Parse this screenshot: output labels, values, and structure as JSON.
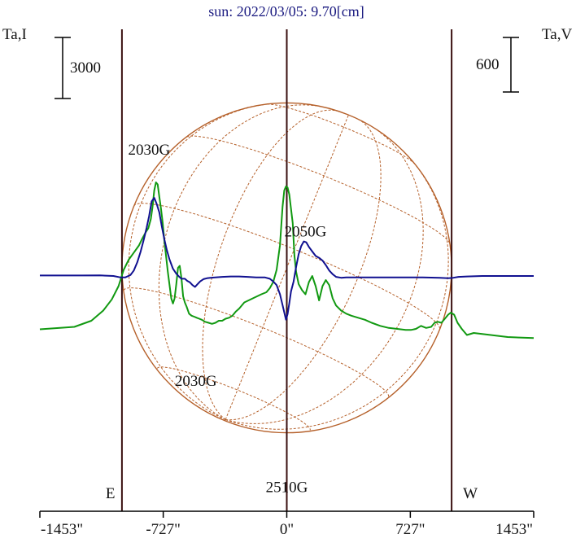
{
  "chart_data": {
    "type": "line",
    "title": "sun: 2022/03/05: 9.70[cm]",
    "ylabel_left": "Ta,I",
    "ylabel_right": "Ta,V",
    "scale_left_label": "3000",
    "scale_right_label": "600",
    "xlim": [
      -1453,
      1453
    ],
    "x_ticks": [
      {
        "value": -1453,
        "label": "-1453\""
      },
      {
        "value": -727,
        "label": "-727\""
      },
      {
        "value": 0,
        "label": "0\""
      },
      {
        "value": 727,
        "label": "727\""
      },
      {
        "value": 1453,
        "label": "1453\""
      }
    ],
    "vertical_markers": [
      {
        "x": -970,
        "label": "E"
      },
      {
        "x": 0,
        "label": ""
      },
      {
        "x": 970,
        "label": "W"
      }
    ],
    "annotations": [
      {
        "text": "2030G",
        "x": -810,
        "level": 0.74
      },
      {
        "text": "2050G",
        "x": 110,
        "level": 0.57
      },
      {
        "text": "2030G",
        "x": -535,
        "level": 0.26
      },
      {
        "text": "2510G",
        "x": 0,
        "level": 0.04
      }
    ],
    "disk": {
      "radius_arcsec": 970
    },
    "series": [
      {
        "name": "",
        "color": "#119911",
        "axis": "left",
        "x": [
          -1453,
          -1250,
          -1150,
          -1080,
          -1030,
          -990,
          -960,
          -930,
          -900,
          -870,
          -850,
          -830,
          -815,
          -800,
          -790,
          -780,
          -770,
          -760,
          -750,
          -740,
          -730,
          -720,
          -700,
          -680,
          -670,
          -660,
          -650,
          -640,
          -630,
          -620,
          -610,
          -600,
          -590,
          -575,
          -560,
          -545,
          -530,
          -515,
          -500,
          -480,
          -460,
          -440,
          -420,
          -400,
          -380,
          -360,
          -340,
          -320,
          -300,
          -280,
          -250,
          -200,
          -150,
          -120,
          -100,
          -80,
          -60,
          -40,
          -25,
          -15,
          -5,
          5,
          15,
          25,
          35,
          45,
          55,
          70,
          90,
          110,
          130,
          150,
          170,
          190,
          210,
          230,
          250,
          270,
          290,
          320,
          350,
          380,
          420,
          460,
          500,
          550,
          600,
          650,
          700,
          730,
          760,
          790,
          820,
          850,
          870,
          890,
          910,
          930,
          950,
          965,
          985,
          1005,
          1030,
          1060,
          1100,
          1200,
          1300,
          1453
        ],
        "values": [
          -2620,
          -2500,
          -2200,
          -1700,
          -1150,
          -500,
          300,
          800,
          1150,
          1500,
          1850,
          2150,
          2350,
          2800,
          3400,
          4200,
          4600,
          4500,
          3900,
          3300,
          2600,
          1700,
          200,
          -1100,
          -1350,
          -1100,
          -400,
          400,
          500,
          -100,
          -1000,
          -1300,
          -1500,
          -1850,
          -1950,
          -2000,
          -2050,
          -2100,
          -2150,
          -2250,
          -2300,
          -2350,
          -2300,
          -2200,
          -2200,
          -2100,
          -2050,
          -1950,
          -1750,
          -1600,
          -1300,
          -1100,
          -900,
          -800,
          -600,
          -300,
          300,
          1500,
          3400,
          4200,
          4400,
          4350,
          4000,
          3300,
          2600,
          1000,
          200,
          -400,
          -700,
          -900,
          -300,
          0,
          -500,
          -1200,
          -500,
          -200,
          -450,
          -1100,
          -1450,
          -1700,
          -1850,
          -1950,
          -2050,
          -2150,
          -2300,
          -2450,
          -2550,
          -2600,
          -2650,
          -2650,
          -2600,
          -2450,
          -2550,
          -2500,
          -2300,
          -2250,
          -2300,
          -2100,
          -1900,
          -1800,
          -1900,
          -2300,
          -2600,
          -2900,
          -2800,
          -2900,
          -3000,
          -3050
        ]
      },
      {
        "name": "",
        "color": "#101090",
        "axis": "right",
        "x": [
          -1453,
          -1200,
          -1100,
          -1020,
          -980,
          -950,
          -920,
          -900,
          -880,
          -860,
          -840,
          -825,
          -810,
          -795,
          -780,
          -765,
          -750,
          -735,
          -720,
          -705,
          -690,
          -670,
          -650,
          -635,
          -620,
          -600,
          -585,
          -570,
          -555,
          -540,
          -525,
          -510,
          -490,
          -470,
          -450,
          -420,
          -380,
          -330,
          -280,
          -230,
          -180,
          -130,
          -100,
          -80,
          -60,
          -40,
          -25,
          -15,
          -5,
          5,
          15,
          25,
          40,
          55,
          70,
          85,
          100,
          115,
          130,
          150,
          170,
          190,
          210,
          230,
          250,
          270,
          290,
          320,
          350,
          400,
          500,
          600,
          700,
          800,
          900,
          950,
          980,
          1010,
          1060,
          1150,
          1300,
          1453
        ],
        "values": [
          5,
          5,
          6,
          0,
          -15,
          -15,
          10,
          60,
          150,
          270,
          410,
          530,
          660,
          820,
          860,
          790,
          700,
          540,
          400,
          280,
          180,
          80,
          25,
          -5,
          -30,
          -30,
          -55,
          -70,
          -100,
          -120,
          -90,
          -60,
          -35,
          -25,
          -20,
          -15,
          -10,
          -5,
          -5,
          -10,
          -15,
          -15,
          -30,
          -60,
          -100,
          -200,
          -320,
          -400,
          -480,
          -420,
          -300,
          -170,
          -60,
          100,
          240,
          330,
          380,
          370,
          320,
          270,
          220,
          200,
          170,
          120,
          60,
          20,
          -10,
          -20,
          -15,
          -15,
          -15,
          -15,
          -15,
          -15,
          -20,
          -25,
          -20,
          -10,
          -5,
          0,
          0,
          0
        ]
      }
    ]
  }
}
